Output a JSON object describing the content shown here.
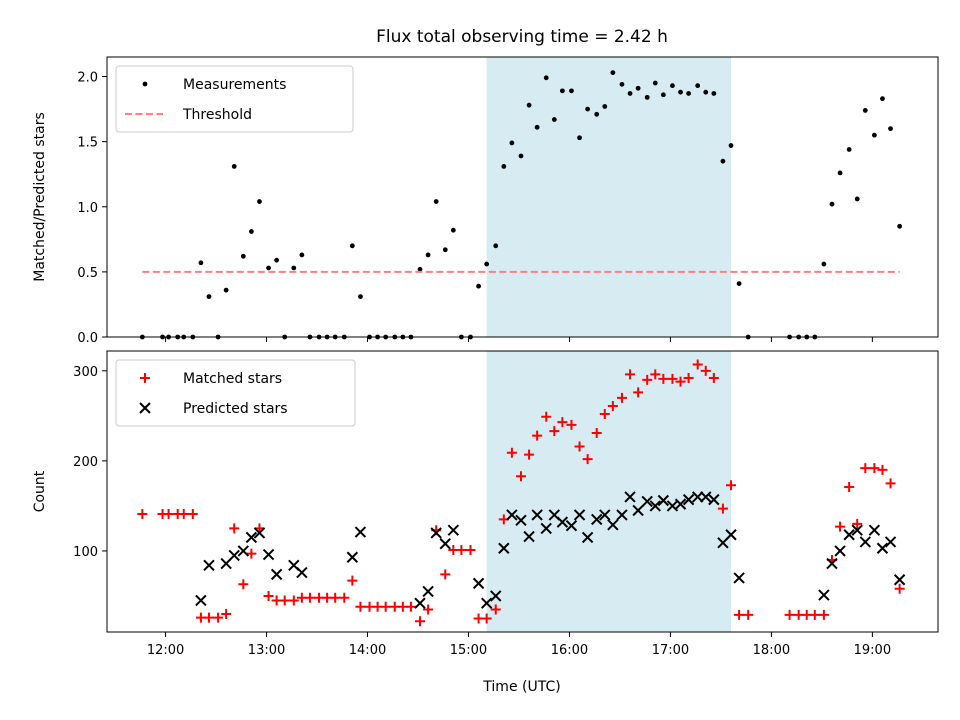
{
  "chart_data": {
    "title": "Flux total observing time = 2.42 h",
    "xlabel": "Time (UTC)",
    "x_axis": {
      "unit": "hours UTC",
      "range": [
        11.42,
        19.65
      ],
      "ticks": [
        12,
        13,
        14,
        15,
        16,
        17,
        18,
        19
      ],
      "tick_labels": [
        "12:00",
        "13:00",
        "14:00",
        "15:00",
        "16:00",
        "17:00",
        "18:00",
        "19:00"
      ]
    },
    "shaded_span": {
      "x_start": 15.18,
      "x_end": 17.6,
      "color": "#add8e6"
    },
    "panels": [
      {
        "ylabel": "Matched/Predicted stars",
        "ylim": [
          0,
          2.15
        ],
        "yticks": [
          0.0,
          0.5,
          1.0,
          1.5,
          2.0
        ],
        "ytick_labels": [
          "0.0",
          "0.5",
          "1.0",
          "1.5",
          "2.0"
        ],
        "legend_position": "upper-left",
        "series": [
          {
            "name": "Measurements",
            "type": "scatter",
            "marker": "dot",
            "color": "#000000",
            "points": [
              [
                11.77,
                0.0
              ],
              [
                11.97,
                0.0
              ],
              [
                12.03,
                0.0
              ],
              [
                12.12,
                0.0
              ],
              [
                12.18,
                0.0
              ],
              [
                12.27,
                0.0
              ],
              [
                12.35,
                0.57
              ],
              [
                12.43,
                0.31
              ],
              [
                12.52,
                0.0
              ],
              [
                12.6,
                0.36
              ],
              [
                12.68,
                1.31
              ],
              [
                12.77,
                0.62
              ],
              [
                12.85,
                0.81
              ],
              [
                12.93,
                1.04
              ],
              [
                13.02,
                0.53
              ],
              [
                13.1,
                0.59
              ],
              [
                13.18,
                0.0
              ],
              [
                13.27,
                0.53
              ],
              [
                13.35,
                0.63
              ],
              [
                13.43,
                0.0
              ],
              [
                13.52,
                0.0
              ],
              [
                13.6,
                0.0
              ],
              [
                13.68,
                0.0
              ],
              [
                13.77,
                0.0
              ],
              [
                13.85,
                0.7
              ],
              [
                13.93,
                0.31
              ],
              [
                14.02,
                0.0
              ],
              [
                14.1,
                0.0
              ],
              [
                14.18,
                0.0
              ],
              [
                14.27,
                0.0
              ],
              [
                14.35,
                0.0
              ],
              [
                14.43,
                0.0
              ],
              [
                14.52,
                0.52
              ],
              [
                14.6,
                0.63
              ],
              [
                14.68,
                1.04
              ],
              [
                14.77,
                0.67
              ],
              [
                14.85,
                0.82
              ],
              [
                14.93,
                0.0
              ],
              [
                15.02,
                0.0
              ],
              [
                15.1,
                0.39
              ],
              [
                15.18,
                0.56
              ],
              [
                15.27,
                0.7
              ],
              [
                15.35,
                1.31
              ],
              [
                15.43,
                1.49
              ],
              [
                15.52,
                1.39
              ],
              [
                15.6,
                1.78
              ],
              [
                15.68,
                1.61
              ],
              [
                15.77,
                1.99
              ],
              [
                15.85,
                1.67
              ],
              [
                15.93,
                1.89
              ],
              [
                16.02,
                1.89
              ],
              [
                16.1,
                1.53
              ],
              [
                16.18,
                1.75
              ],
              [
                16.27,
                1.71
              ],
              [
                16.35,
                1.77
              ],
              [
                16.43,
                2.03
              ],
              [
                16.52,
                1.94
              ],
              [
                16.6,
                1.87
              ],
              [
                16.68,
                1.91
              ],
              [
                16.77,
                1.84
              ],
              [
                16.85,
                1.95
              ],
              [
                16.93,
                1.86
              ],
              [
                17.02,
                1.93
              ],
              [
                17.1,
                1.88
              ],
              [
                17.18,
                1.87
              ],
              [
                17.27,
                1.93
              ],
              [
                17.35,
                1.88
              ],
              [
                17.43,
                1.87
              ],
              [
                17.52,
                1.35
              ],
              [
                17.6,
                1.47
              ],
              [
                17.68,
                0.41
              ],
              [
                17.77,
                0.0
              ],
              [
                18.18,
                0.0
              ],
              [
                18.27,
                0.0
              ],
              [
                18.35,
                0.0
              ],
              [
                18.43,
                0.0
              ],
              [
                18.52,
                0.56
              ],
              [
                18.6,
                1.02
              ],
              [
                18.68,
                1.26
              ],
              [
                18.77,
                1.44
              ],
              [
                18.85,
                1.06
              ],
              [
                18.93,
                1.74
              ],
              [
                19.02,
                1.55
              ],
              [
                19.1,
                1.83
              ],
              [
                19.18,
                1.6
              ],
              [
                19.27,
                0.85
              ]
            ]
          },
          {
            "name": "Threshold",
            "type": "line",
            "style": "dashed",
            "color": "#ff7f7f",
            "points": [
              [
                11.77,
                0.5
              ],
              [
                19.27,
                0.5
              ]
            ]
          }
        ]
      },
      {
        "ylabel": "Count",
        "ylim": [
          10,
          322
        ],
        "yticks": [
          100,
          200,
          300
        ],
        "ytick_labels": [
          "100",
          "200",
          "300"
        ],
        "legend_position": "upper-left",
        "series": [
          {
            "name": "Matched stars",
            "type": "scatter",
            "marker": "plus",
            "color": "#ff0000",
            "points": [
              [
                11.77,
                141
              ],
              [
                11.97,
                141
              ],
              [
                12.03,
                141
              ],
              [
                12.12,
                141
              ],
              [
                12.18,
                141
              ],
              [
                12.27,
                141
              ],
              [
                12.35,
                26
              ],
              [
                12.43,
                26
              ],
              [
                12.52,
                26
              ],
              [
                12.6,
                30
              ],
              [
                12.68,
                125
              ],
              [
                12.77,
                63
              ],
              [
                12.85,
                97
              ],
              [
                12.93,
                125
              ],
              [
                13.02,
                50
              ],
              [
                13.1,
                45
              ],
              [
                13.18,
                45
              ],
              [
                13.27,
                45
              ],
              [
                13.35,
                48
              ],
              [
                13.43,
                48
              ],
              [
                13.52,
                48
              ],
              [
                13.6,
                48
              ],
              [
                13.68,
                48
              ],
              [
                13.77,
                48
              ],
              [
                13.85,
                67
              ],
              [
                13.93,
                38
              ],
              [
                14.02,
                38
              ],
              [
                14.1,
                38
              ],
              [
                14.18,
                38
              ],
              [
                14.27,
                38
              ],
              [
                14.35,
                38
              ],
              [
                14.43,
                38
              ],
              [
                14.52,
                22
              ],
              [
                14.6,
                35
              ],
              [
                14.68,
                123
              ],
              [
                14.77,
                74
              ],
              [
                14.85,
                101
              ],
              [
                14.93,
                101
              ],
              [
                15.02,
                101
              ],
              [
                15.1,
                25
              ],
              [
                15.18,
                25
              ],
              [
                15.27,
                35
              ],
              [
                15.35,
                135
              ],
              [
                15.43,
                209
              ],
              [
                15.52,
                183
              ],
              [
                15.6,
                207
              ],
              [
                15.68,
                228
              ],
              [
                15.77,
                249
              ],
              [
                15.85,
                233
              ],
              [
                15.93,
                243
              ],
              [
                16.02,
                240
              ],
              [
                16.1,
                216
              ],
              [
                16.18,
                202
              ],
              [
                16.27,
                231
              ],
              [
                16.35,
                252
              ],
              [
                16.43,
                261
              ],
              [
                16.52,
                270
              ],
              [
                16.6,
                296
              ],
              [
                16.68,
                276
              ],
              [
                16.77,
                290
              ],
              [
                16.85,
                296
              ],
              [
                16.93,
                291
              ],
              [
                17.02,
                291
              ],
              [
                17.1,
                288
              ],
              [
                17.18,
                292
              ],
              [
                17.27,
                307
              ],
              [
                17.35,
                300
              ],
              [
                17.43,
                292
              ],
              [
                17.52,
                147
              ],
              [
                17.6,
                173
              ],
              [
                17.68,
                29
              ],
              [
                17.77,
                29
              ],
              [
                18.18,
                29
              ],
              [
                18.27,
                29
              ],
              [
                18.35,
                29
              ],
              [
                18.43,
                29
              ],
              [
                18.52,
                29
              ],
              [
                18.6,
                90
              ],
              [
                18.68,
                127
              ],
              [
                18.77,
                171
              ],
              [
                18.85,
                130
              ],
              [
                18.93,
                192
              ],
              [
                19.02,
                192
              ],
              [
                19.1,
                190
              ],
              [
                19.18,
                175
              ],
              [
                19.27,
                58
              ]
            ]
          },
          {
            "name": "Predicted stars",
            "type": "scatter",
            "marker": "x",
            "color": "#000000",
            "points": [
              [
                12.35,
                45
              ],
              [
                12.43,
                84
              ],
              [
                12.6,
                86
              ],
              [
                12.68,
                95
              ],
              [
                12.77,
                100
              ],
              [
                12.85,
                115
              ],
              [
                12.93,
                120
              ],
              [
                13.02,
                96
              ],
              [
                13.1,
                74
              ],
              [
                13.27,
                84
              ],
              [
                13.35,
                76
              ],
              [
                13.85,
                93
              ],
              [
                13.93,
                121
              ],
              [
                14.52,
                42
              ],
              [
                14.6,
                55
              ],
              [
                14.68,
                120
              ],
              [
                14.77,
                108
              ],
              [
                14.85,
                123
              ],
              [
                15.1,
                64
              ],
              [
                15.18,
                42
              ],
              [
                15.27,
                50
              ],
              [
                15.35,
                103
              ],
              [
                15.43,
                140
              ],
              [
                15.52,
                134
              ],
              [
                15.6,
                116
              ],
              [
                15.68,
                140
              ],
              [
                15.77,
                125
              ],
              [
                15.85,
                140
              ],
              [
                15.93,
                132
              ],
              [
                16.02,
                128
              ],
              [
                16.1,
                140
              ],
              [
                16.18,
                115
              ],
              [
                16.27,
                135
              ],
              [
                16.35,
                140
              ],
              [
                16.43,
                129
              ],
              [
                16.52,
                140
              ],
              [
                16.6,
                160
              ],
              [
                16.68,
                145
              ],
              [
                16.77,
                155
              ],
              [
                16.85,
                150
              ],
              [
                16.93,
                156
              ],
              [
                17.02,
                150
              ],
              [
                17.1,
                152
              ],
              [
                17.18,
                157
              ],
              [
                17.27,
                160
              ],
              [
                17.35,
                160
              ],
              [
                17.43,
                157
              ],
              [
                17.52,
                109
              ],
              [
                17.6,
                118
              ],
              [
                17.68,
                70
              ],
              [
                18.52,
                51
              ],
              [
                18.6,
                86
              ],
              [
                18.68,
                100
              ],
              [
                18.77,
                118
              ],
              [
                18.85,
                123
              ],
              [
                18.93,
                110
              ],
              [
                19.02,
                123
              ],
              [
                19.1,
                103
              ],
              [
                19.18,
                110
              ],
              [
                19.27,
                68
              ]
            ]
          }
        ]
      }
    ]
  }
}
